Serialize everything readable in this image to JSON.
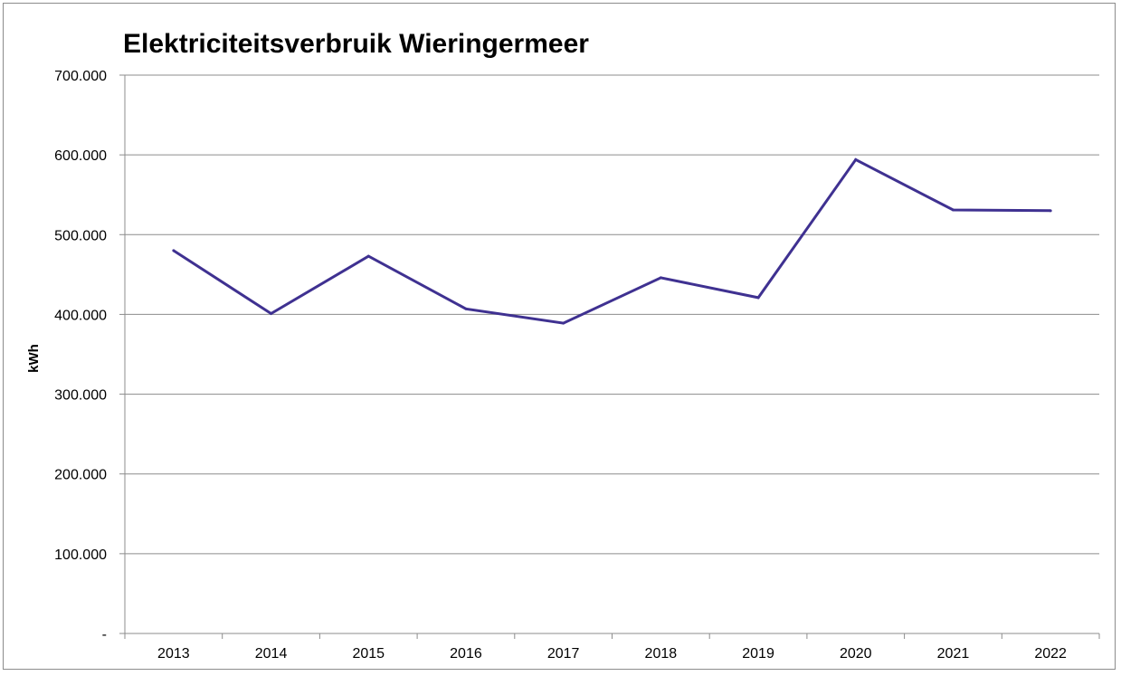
{
  "chart_data": {
    "type": "line",
    "title": "Elektriciteitsverbruik Wieringermeer",
    "xlabel": "",
    "ylabel": "kWh",
    "categories": [
      "2013",
      "2014",
      "2015",
      "2016",
      "2017",
      "2018",
      "2019",
      "2020",
      "2021",
      "2022"
    ],
    "series": [
      {
        "color": "#3f3191",
        "values": [
          480000,
          401000,
          473000,
          407000,
          389000,
          446000,
          421000,
          594000,
          531000,
          530000
        ]
      }
    ],
    "ylim": [
      0,
      700000
    ],
    "y_ticks": [
      0,
      100000,
      200000,
      300000,
      400000,
      500000,
      600000,
      700000
    ],
    "y_tick_labels": [
      "-",
      "100.000",
      "200.000",
      "300.000",
      "400.000",
      "500.000",
      "600.000",
      "700.000"
    ],
    "grid": true,
    "legend": "none",
    "colors": {
      "gridline": "#8c8c8c",
      "axis": "#8c8c8c",
      "border": "#8c8c8c"
    }
  }
}
